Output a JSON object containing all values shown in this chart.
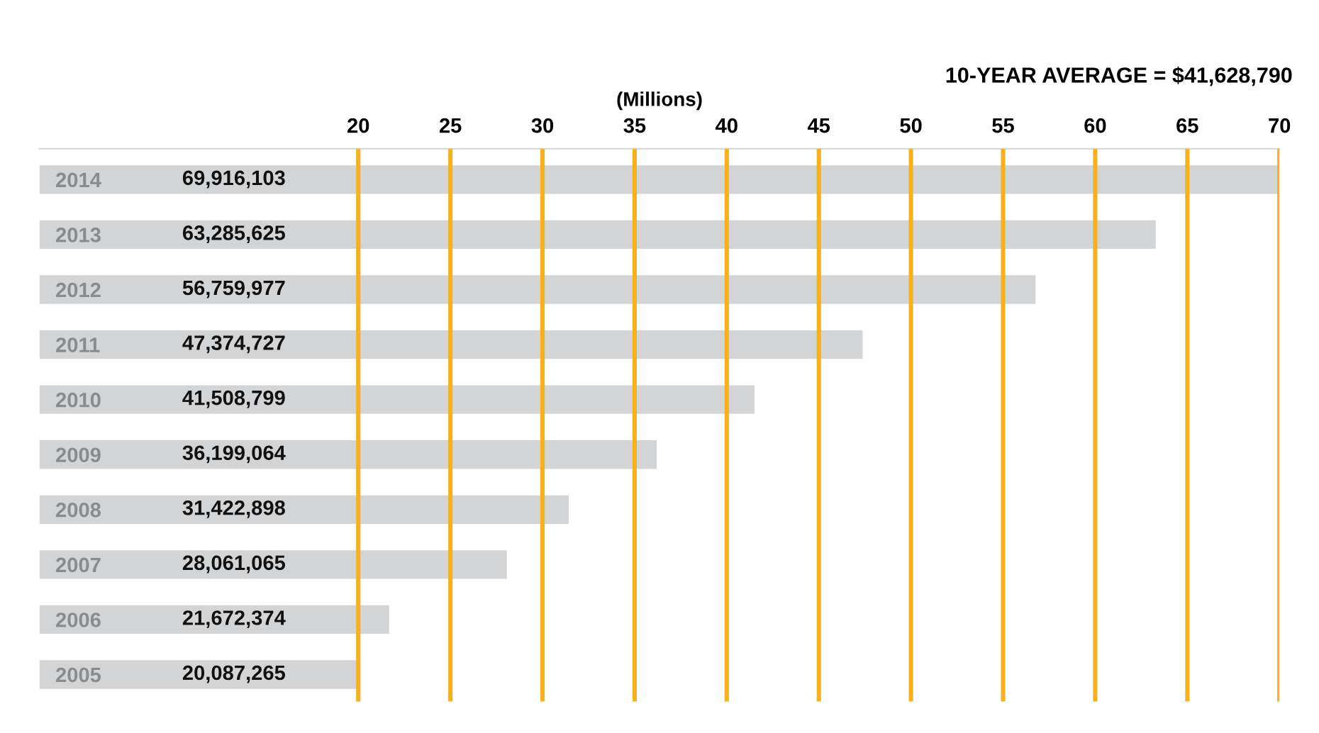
{
  "chart_data": {
    "type": "bar",
    "orientation": "horizontal",
    "title": "10-YEAR AVERAGE = $41,628,790",
    "xlabel": "(Millions)",
    "categories": [
      "2014",
      "2013",
      "2012",
      "2011",
      "2010",
      "2009",
      "2008",
      "2007",
      "2006",
      "2005"
    ],
    "values": [
      69.916103,
      63.285625,
      56.759977,
      47.374727,
      41.508799,
      36.199064,
      31.422898,
      28.061065,
      21.672374,
      20.087265
    ],
    "annotations": [
      "69,916,103",
      "63,285,625",
      "56,759,977",
      "47,374,727",
      "41,508,799",
      "36,199,064",
      "31,422,898",
      "28,061,065",
      "21,672,374",
      "20,087,265"
    ],
    "color": "#d3d4d6",
    "xlim": [
      2.7,
      70
    ],
    "xticks": [
      20,
      25,
      30,
      35,
      40,
      45,
      50,
      55,
      60,
      65,
      70
    ],
    "grid": "x"
  }
}
